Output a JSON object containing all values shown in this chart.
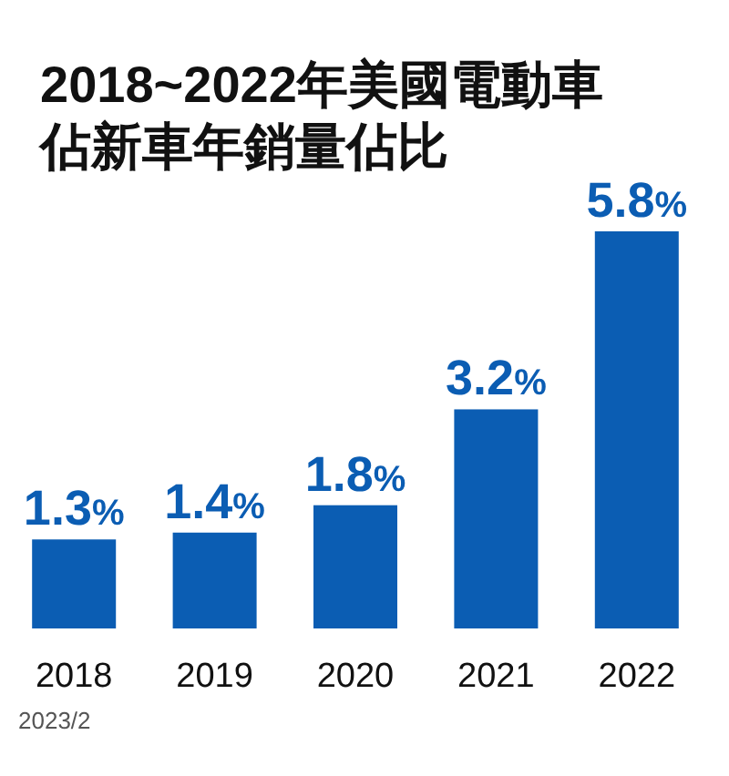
{
  "chart_data": {
    "type": "bar",
    "title": "2018~2022年美國電動車佔新車年銷量佔比",
    "categories": [
      "2018",
      "2019",
      "2020",
      "2021",
      "2022"
    ],
    "values": [
      1.3,
      1.4,
      1.8,
      3.2,
      5.8
    ],
    "value_labels": [
      "1.3%",
      "1.4%",
      "1.8%",
      "3.2%",
      "5.8%"
    ],
    "color": "#0b5db3",
    "annotations": [
      "2023/2"
    ]
  }
}
